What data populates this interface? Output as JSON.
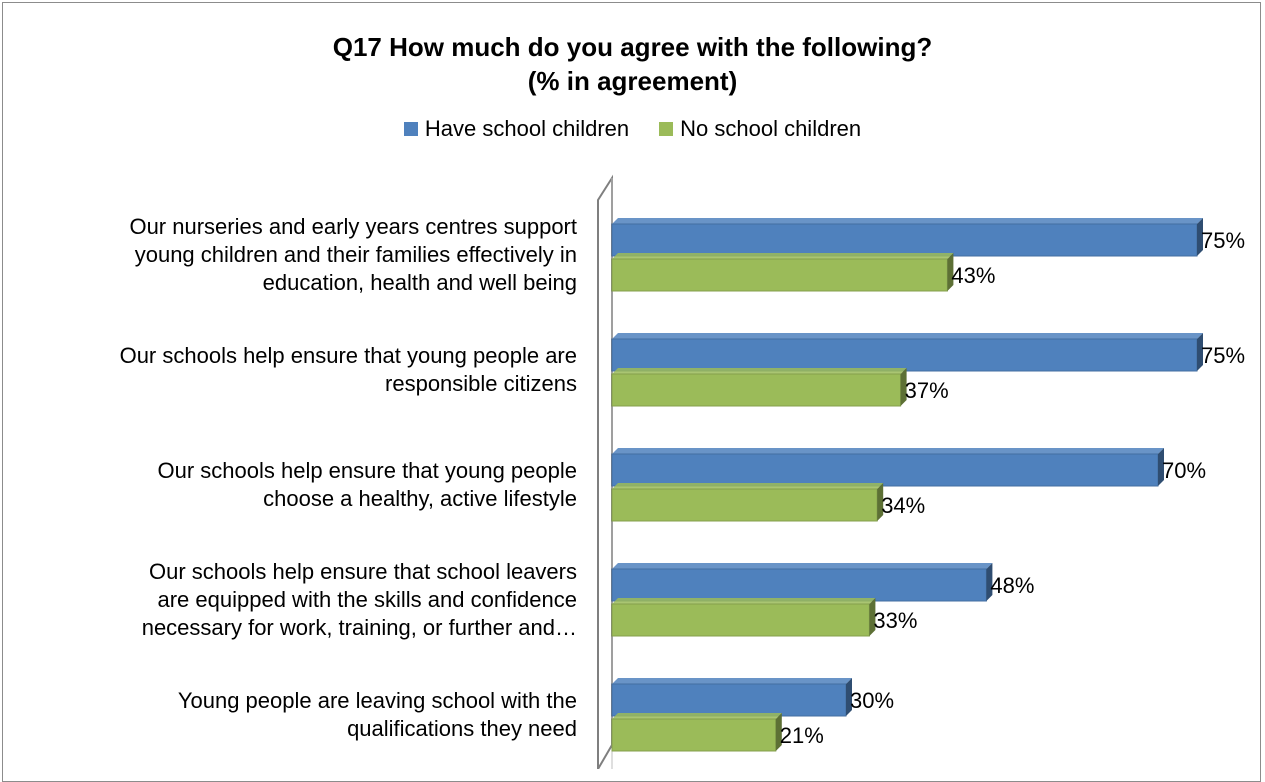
{
  "chart_data": {
    "type": "bar",
    "orientation": "horizontal",
    "title_lines": [
      "Q17 How much do you agree with the following?",
      "(% in agreement)"
    ],
    "legend_position": "top",
    "categories": [
      [
        "Our nurseries and early years centres support",
        "young children and their families effectively in",
        "education, health and well being"
      ],
      [
        "Our schools help ensure that young people are",
        "responsible citizens"
      ],
      [
        "Our schools help ensure that young people",
        "choose a healthy, active lifestyle"
      ],
      [
        "Our schools help ensure that school leavers",
        "are equipped with the skills and confidence",
        "necessary for work, training, or further and…"
      ],
      [
        "Young people are leaving school with the",
        "qualifications they need"
      ]
    ],
    "series": [
      {
        "name": "Have school children",
        "color": "#4f81bd",
        "values": [
          75,
          75,
          70,
          48,
          30
        ],
        "labels": [
          "75%",
          "75%",
          "70%",
          "48%",
          "30%"
        ]
      },
      {
        "name": "No school children",
        "color": "#9bbb59",
        "values": [
          43,
          37,
          34,
          33,
          21
        ],
        "labels": [
          "43%",
          "37%",
          "34%",
          "33%",
          "21%"
        ]
      }
    ],
    "xlim": [
      0,
      75
    ],
    "grid": false
  }
}
